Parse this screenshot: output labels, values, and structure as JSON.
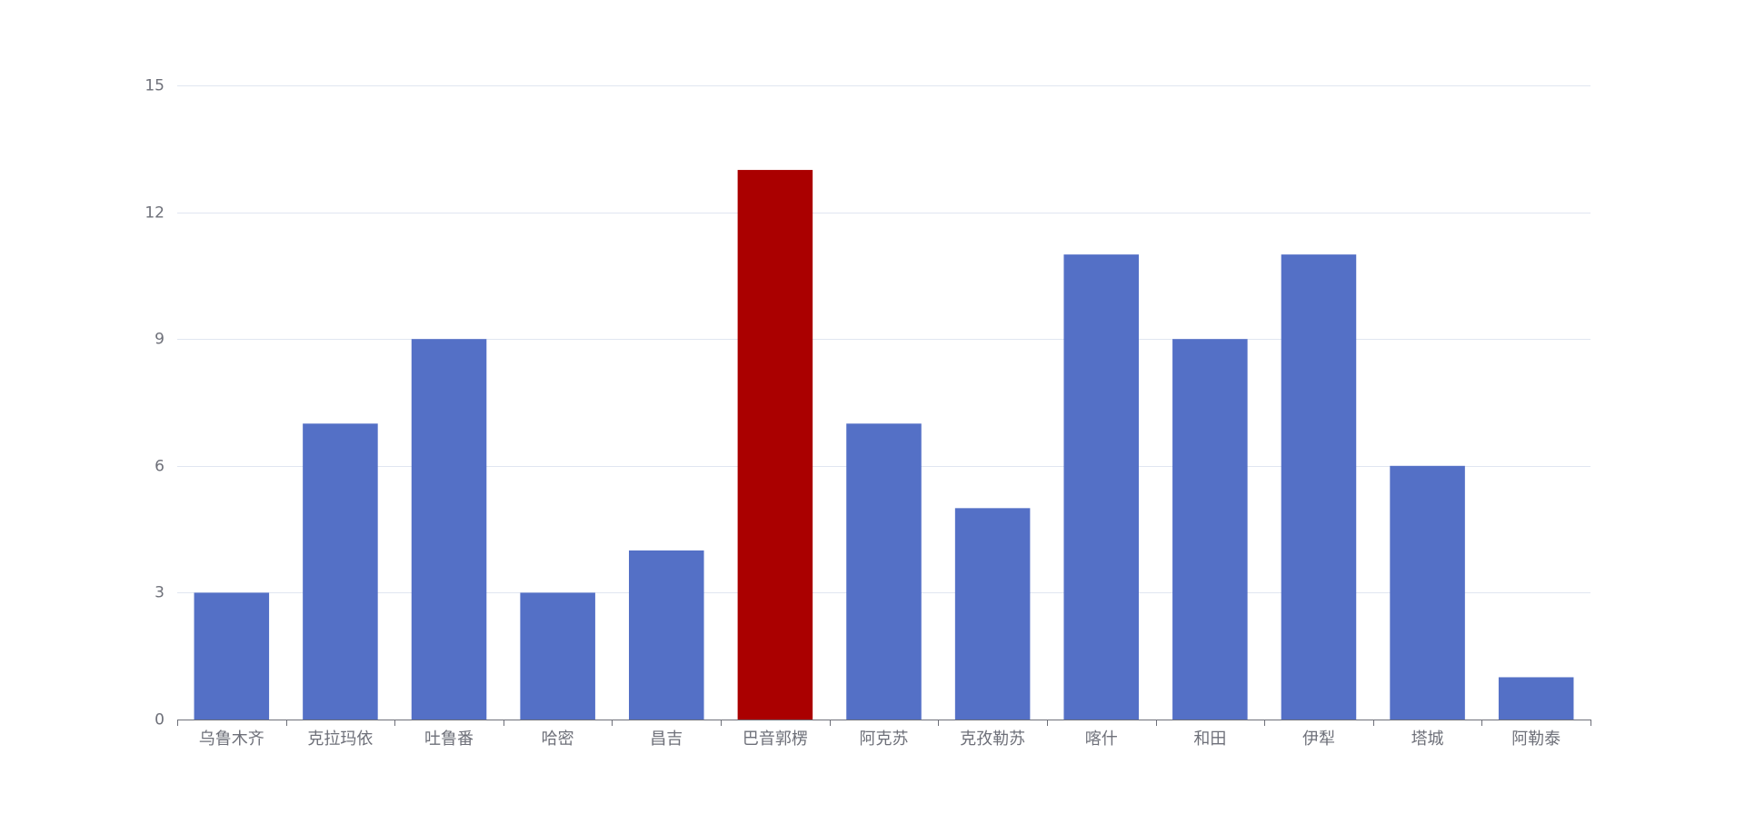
{
  "chart_data": {
    "type": "bar",
    "categories": [
      "乌鲁木齐",
      "克拉玛依",
      "吐鲁番",
      "哈密",
      "昌吉",
      "巴音郭楞",
      "阿克苏",
      "克孜勒苏",
      "喀什",
      "和田",
      "伊犁",
      "塔城",
      "阿勒泰"
    ],
    "values": [
      3,
      7,
      9,
      3,
      4,
      13,
      7,
      5,
      11,
      9,
      11,
      6,
      1
    ],
    "title": "",
    "xlabel": "",
    "ylabel": "",
    "ylim": [
      0,
      15
    ],
    "yticks": [
      0,
      3,
      6,
      9,
      12,
      15
    ],
    "grid": true,
    "colors": {
      "bar": "#5470c6",
      "highlight": "#aa0000",
      "grid": "#e0e6f1",
      "axis": "#6e7079",
      "label": "#6e7079"
    },
    "highlight_category": "巴音郭楞"
  }
}
